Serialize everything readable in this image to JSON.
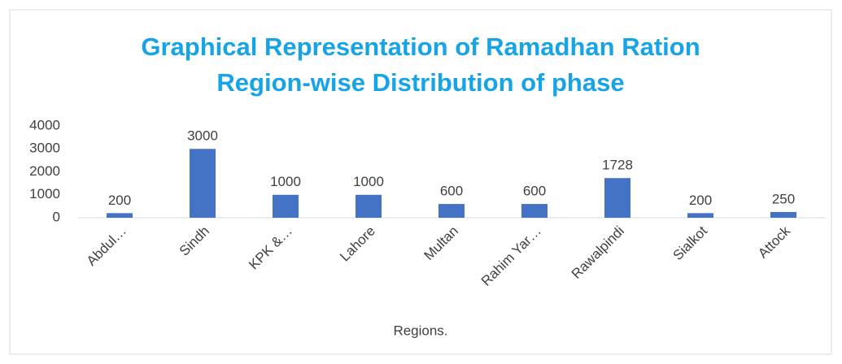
{
  "chart_data": {
    "type": "bar",
    "title": [
      "Graphical Representation of Ramadhan Ration",
      "Region-wise Distribution of phase"
    ],
    "x_label": "Regions.",
    "categories": [
      "Abdul…",
      "Sindh",
      "KPK &…",
      "Lahore",
      "Multan",
      "Rahim Yar…",
      "Rawalpindi",
      "Sialkot",
      "Attock"
    ],
    "values": [
      200,
      3000,
      1000,
      1000,
      600,
      600,
      1728,
      200,
      250
    ],
    "color": "#4472c4",
    "ylim": [
      0,
      4000
    ],
    "yticks": [
      0,
      1000,
      2000,
      3000,
      4000
    ],
    "grid": false
  }
}
